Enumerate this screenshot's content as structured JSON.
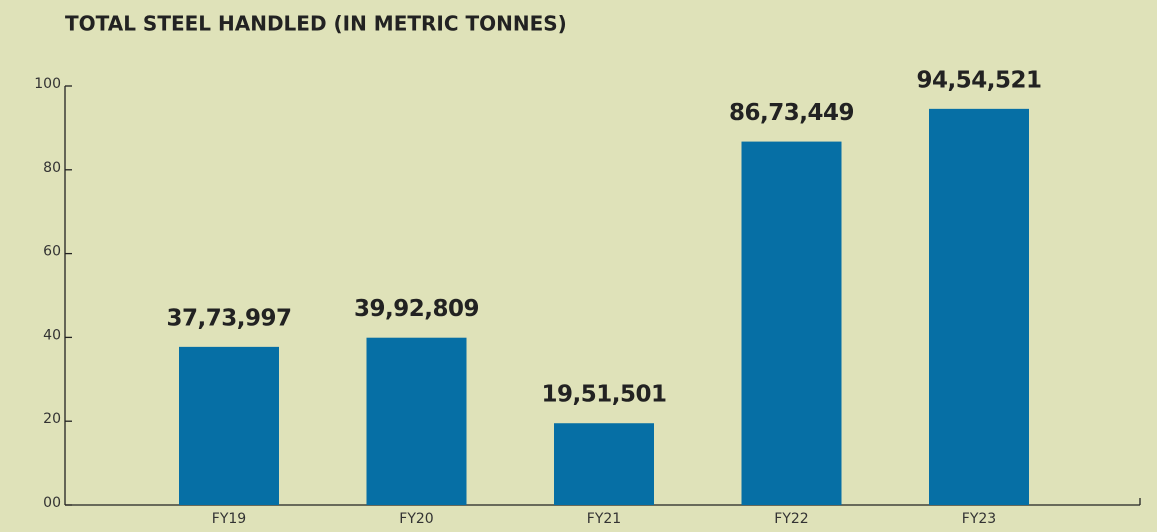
{
  "chart_data": {
    "type": "bar",
    "title": "TOTAL STEEL HANDLED (IN METRIC TONNES)",
    "categories": [
      "FY19",
      "FY20",
      "FY21",
      "FY22",
      "FY23"
    ],
    "values": [
      37.73997,
      39.92809,
      19.51501,
      86.73449,
      94.54521
    ],
    "value_labels": [
      "37,73,997",
      "39,92,809",
      "19,51,501",
      "86,73,449",
      "94,54,521"
    ],
    "color": "#066fa5",
    "ylim": [
      0,
      100
    ],
    "yticks": [
      {
        "value": 0,
        "label": "00"
      },
      20,
      40,
      60,
      80,
      100
    ],
    "grid": false
  }
}
